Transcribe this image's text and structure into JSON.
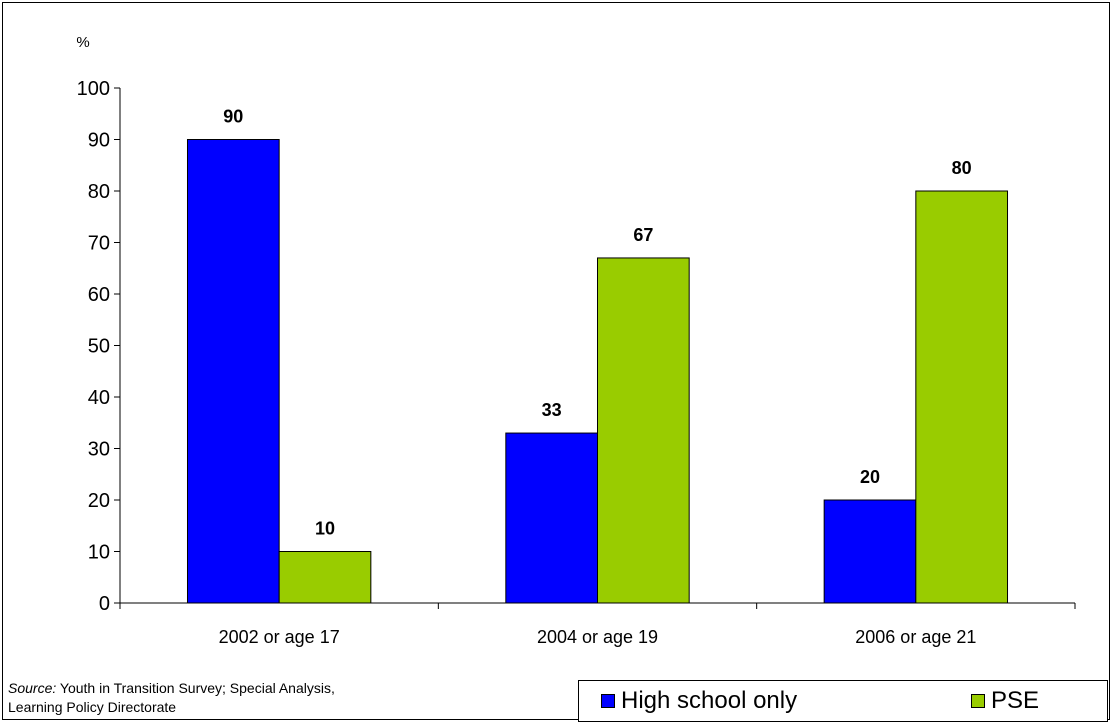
{
  "chart_data": {
    "type": "bar",
    "ylabel": "%",
    "ylim": [
      0,
      100
    ],
    "yticks": [
      0,
      10,
      20,
      30,
      40,
      50,
      60,
      70,
      80,
      90,
      100
    ],
    "categories": [
      "2002 or age 17",
      "2004 or age 19",
      "2006 or age 21"
    ],
    "series": [
      {
        "name": "High school only",
        "color": "#0000FF",
        "values": [
          90,
          33,
          20
        ],
        "labels": [
          "90",
          "33",
          "20"
        ]
      },
      {
        "name": "PSE",
        "color": "#99CC00",
        "values": [
          10,
          67,
          80
        ],
        "labels": [
          "10",
          "67",
          "80"
        ]
      }
    ],
    "grid": false,
    "legend": "bottom-right",
    "data_labels": true
  },
  "source": {
    "label": "Source:",
    "text": " Youth in Transition Survey; Special Analysis,",
    "line2": "Learning Policy Directorate"
  },
  "legend": {
    "items": [
      {
        "label": "High school only",
        "color": "#0000FF"
      },
      {
        "label": "PSE",
        "color": "#99CC00"
      }
    ]
  }
}
